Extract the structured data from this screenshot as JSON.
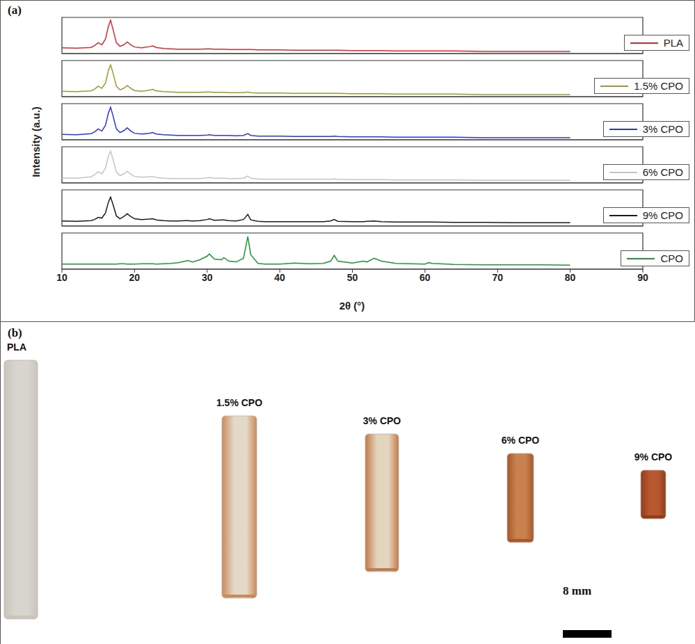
{
  "panel_a": {
    "label": "(a)",
    "y_label": "Intensity (a.u.)",
    "x_label": "2θ (°)"
  },
  "chart_data": [
    {
      "type": "line",
      "xlim": [
        10,
        90
      ],
      "xticks": [
        10,
        20,
        30,
        40,
        50,
        60,
        70,
        80,
        90
      ],
      "ylim": [
        0,
        100
      ],
      "tick_labels": false,
      "grid": false,
      "legend": "lower right",
      "x": [
        10,
        12,
        14,
        14.5,
        15,
        15.5,
        16,
        16.4,
        16.7,
        17,
        17.5,
        18,
        18.5,
        19,
        19.5,
        20,
        21,
        22,
        22.5,
        23,
        24,
        25,
        26,
        27,
        27.3,
        28,
        29,
        30,
        30.3,
        31,
        32,
        32.3,
        33,
        34,
        35,
        35.6,
        36,
        37,
        38,
        40,
        42,
        44,
        46,
        47,
        47.5,
        48,
        50,
        51.5,
        52,
        53,
        54,
        56,
        58,
        60,
        60.5,
        61,
        64,
        68,
        72,
        76,
        80
      ],
      "series": [
        {
          "name": "PLA",
          "color": "#e3262b",
          "values": [
            16,
            15,
            17,
            22,
            30,
            24,
            40,
            75,
            92,
            70,
            30,
            20,
            24,
            32,
            24,
            18,
            16,
            19,
            21,
            17,
            14,
            13,
            12,
            12,
            12,
            12,
            12,
            13,
            13,
            12,
            12,
            12,
            11,
            11,
            11,
            11,
            11,
            10,
            10,
            10,
            9,
            9,
            9,
            9,
            9,
            9,
            8,
            8,
            8,
            8,
            8,
            7,
            7,
            7,
            7,
            7,
            7,
            6,
            6,
            6,
            6
          ]
        }
      ]
    },
    {
      "type": "line",
      "xlim": [
        10,
        90
      ],
      "xticks": [
        10,
        20,
        30,
        40,
        50,
        60,
        70,
        80,
        90
      ],
      "ylim": [
        0,
        100
      ],
      "tick_labels": false,
      "grid": false,
      "legend": "lower right",
      "x": [
        10,
        12,
        14,
        14.5,
        15,
        15.5,
        16,
        16.4,
        16.7,
        17,
        17.5,
        18,
        18.5,
        19,
        19.5,
        20,
        21,
        22,
        22.5,
        23,
        24,
        25,
        26,
        27,
        27.3,
        28,
        29,
        30,
        30.3,
        31,
        32,
        32.3,
        33,
        34,
        35,
        35.6,
        36,
        37,
        38,
        40,
        42,
        44,
        46,
        47,
        47.5,
        48,
        50,
        51.5,
        52,
        53,
        54,
        56,
        58,
        60,
        60.5,
        61,
        64,
        68,
        72,
        76,
        80
      ],
      "series": [
        {
          "name": "1.5% CPO",
          "color": "#9c9a2c",
          "values": [
            15,
            14,
            16,
            21,
            29,
            23,
            38,
            72,
            88,
            68,
            29,
            19,
            23,
            31,
            23,
            17,
            15,
            18,
            20,
            16,
            14,
            13,
            12,
            12,
            12,
            12,
            12,
            13,
            13,
            12,
            12,
            12,
            11,
            11,
            11,
            13,
            11,
            10,
            10,
            10,
            9,
            9,
            9,
            9,
            9,
            9,
            8,
            8,
            8,
            8,
            8,
            7,
            7,
            7,
            7,
            7,
            7,
            6,
            6,
            6,
            6
          ]
        }
      ]
    },
    {
      "type": "line",
      "xlim": [
        10,
        90
      ],
      "xticks": [
        10,
        20,
        30,
        40,
        50,
        60,
        70,
        80,
        90
      ],
      "ylim": [
        0,
        100
      ],
      "tick_labels": false,
      "grid": false,
      "legend": "lower right",
      "x": [
        10,
        12,
        14,
        14.5,
        15,
        15.5,
        16,
        16.4,
        16.7,
        17,
        17.5,
        18,
        18.5,
        19,
        19.5,
        20,
        21,
        22,
        22.5,
        23,
        24,
        25,
        26,
        27,
        27.3,
        28,
        29,
        30,
        30.3,
        31,
        32,
        32.3,
        33,
        34,
        35,
        35.6,
        36,
        37,
        38,
        40,
        42,
        44,
        46,
        47,
        47.5,
        48,
        50,
        51.5,
        52,
        53,
        54,
        56,
        58,
        60,
        60.5,
        61,
        64,
        68,
        72,
        76,
        80
      ],
      "series": [
        {
          "name": "3% CPO",
          "color": "#2b35e0",
          "values": [
            15,
            14,
            17,
            22,
            30,
            24,
            40,
            74,
            90,
            69,
            30,
            20,
            25,
            33,
            24,
            18,
            16,
            18,
            20,
            16,
            14,
            13,
            12,
            12,
            12,
            12,
            12,
            13,
            14,
            12,
            12,
            12,
            12,
            11,
            12,
            17,
            12,
            10,
            10,
            10,
            9,
            9,
            9,
            9,
            10,
            9,
            8,
            8,
            8,
            8,
            8,
            7,
            7,
            7,
            7,
            7,
            7,
            6,
            6,
            6,
            6
          ]
        }
      ]
    },
    {
      "type": "line",
      "xlim": [
        10,
        90
      ],
      "xticks": [
        10,
        20,
        30,
        40,
        50,
        60,
        70,
        80,
        90
      ],
      "ylim": [
        0,
        100
      ],
      "tick_labels": false,
      "grid": false,
      "legend": "lower right",
      "x": [
        10,
        12,
        14,
        14.5,
        15,
        15.5,
        16,
        16.4,
        16.7,
        17,
        17.5,
        18,
        18.5,
        19,
        19.5,
        20,
        21,
        22,
        22.5,
        23,
        24,
        25,
        26,
        27,
        27.3,
        28,
        29,
        30,
        30.3,
        31,
        32,
        32.3,
        33,
        34,
        35,
        35.6,
        36,
        37,
        38,
        40,
        42,
        44,
        46,
        47,
        47.5,
        48,
        50,
        51.5,
        52,
        53,
        54,
        56,
        58,
        60,
        60.5,
        61,
        64,
        68,
        72,
        76,
        80
      ],
      "series": [
        {
          "name": "6% CPO",
          "color": "#c4c4c4",
          "values": [
            14,
            13,
            17,
            23,
            31,
            25,
            41,
            75,
            88,
            68,
            30,
            20,
            25,
            32,
            24,
            18,
            16,
            17,
            18,
            15,
            13,
            12,
            12,
            12,
            12,
            12,
            12,
            14,
            15,
            13,
            13,
            13,
            12,
            12,
            13,
            19,
            13,
            11,
            10,
            10,
            10,
            10,
            10,
            10,
            11,
            10,
            9,
            9,
            9,
            9,
            9,
            8,
            8,
            8,
            8,
            8,
            8,
            7,
            7,
            7,
            7
          ]
        }
      ]
    },
    {
      "type": "line",
      "xlim": [
        10,
        90
      ],
      "xticks": [
        10,
        20,
        30,
        40,
        50,
        60,
        70,
        80,
        90
      ],
      "ylim": [
        0,
        100
      ],
      "tick_labels": false,
      "grid": false,
      "legend": "lower right",
      "x": [
        10,
        12,
        14,
        14.5,
        15,
        15.5,
        16,
        16.4,
        16.7,
        17,
        17.5,
        18,
        18.5,
        19,
        19.5,
        20,
        21,
        22,
        22.5,
        23,
        24,
        25,
        26,
        27,
        27.3,
        28,
        29,
        30,
        30.3,
        31,
        32,
        32.3,
        33,
        34,
        35,
        35.6,
        36,
        37,
        38,
        40,
        42,
        44,
        46,
        47,
        47.5,
        48,
        50,
        51.5,
        52,
        53,
        54,
        56,
        58,
        60,
        60.5,
        61,
        64,
        68,
        72,
        76,
        80
      ],
      "series": [
        {
          "name": "9% CPO",
          "color": "#1a1a1a",
          "values": [
            14,
            13,
            15,
            18,
            24,
            22,
            36,
            66,
            80,
            62,
            28,
            20,
            26,
            34,
            26,
            20,
            18,
            19,
            20,
            17,
            15,
            14,
            14,
            15,
            15,
            14,
            15,
            18,
            20,
            16,
            17,
            17,
            15,
            14,
            18,
            32,
            17,
            13,
            12,
            12,
            12,
            12,
            12,
            14,
            18,
            13,
            12,
            12,
            13,
            14,
            12,
            11,
            11,
            11,
            11,
            11,
            10,
            10,
            9,
            9,
            9
          ]
        }
      ]
    },
    {
      "type": "line",
      "xlim": [
        10,
        90
      ],
      "xticks": [
        10,
        20,
        30,
        40,
        50,
        60,
        70,
        80,
        90
      ],
      "ylim": [
        0,
        100
      ],
      "tick_labels": "x",
      "grid": false,
      "legend": "lower right",
      "x": [
        10,
        12,
        14,
        14.5,
        15,
        15.5,
        16,
        16.4,
        16.7,
        17,
        17.5,
        18,
        18.5,
        19,
        19.5,
        20,
        21,
        22,
        22.5,
        23,
        24,
        25,
        26,
        27,
        27.3,
        28,
        29,
        30,
        30.3,
        31,
        32,
        32.3,
        33,
        34,
        35,
        35.6,
        36,
        37,
        38,
        40,
        42,
        44,
        46,
        47,
        47.5,
        48,
        50,
        51.5,
        52,
        53,
        54,
        56,
        58,
        60,
        60.5,
        61,
        64,
        68,
        72,
        76,
        80
      ],
      "series": [
        {
          "name": "CPO",
          "color": "#1e9a2e",
          "values": [
            14,
            14,
            14,
            14,
            14,
            14,
            14,
            14,
            14,
            14,
            14,
            15,
            15,
            14,
            14,
            14,
            15,
            15,
            15,
            14,
            15,
            16,
            18,
            22,
            24,
            20,
            26,
            36,
            42,
            28,
            26,
            32,
            22,
            20,
            30,
            90,
            40,
            16,
            14,
            14,
            17,
            15,
            16,
            22,
            38,
            22,
            17,
            22,
            20,
            30,
            22,
            16,
            15,
            14,
            18,
            16,
            13,
            12,
            12,
            12,
            11
          ]
        }
      ]
    }
  ],
  "panel_b": {
    "label": "(b)",
    "samples": [
      "PLA",
      "1.5% CPO",
      "3% CPO",
      "6% CPO",
      "9% CPO"
    ],
    "scale_bar": "8 mm"
  }
}
